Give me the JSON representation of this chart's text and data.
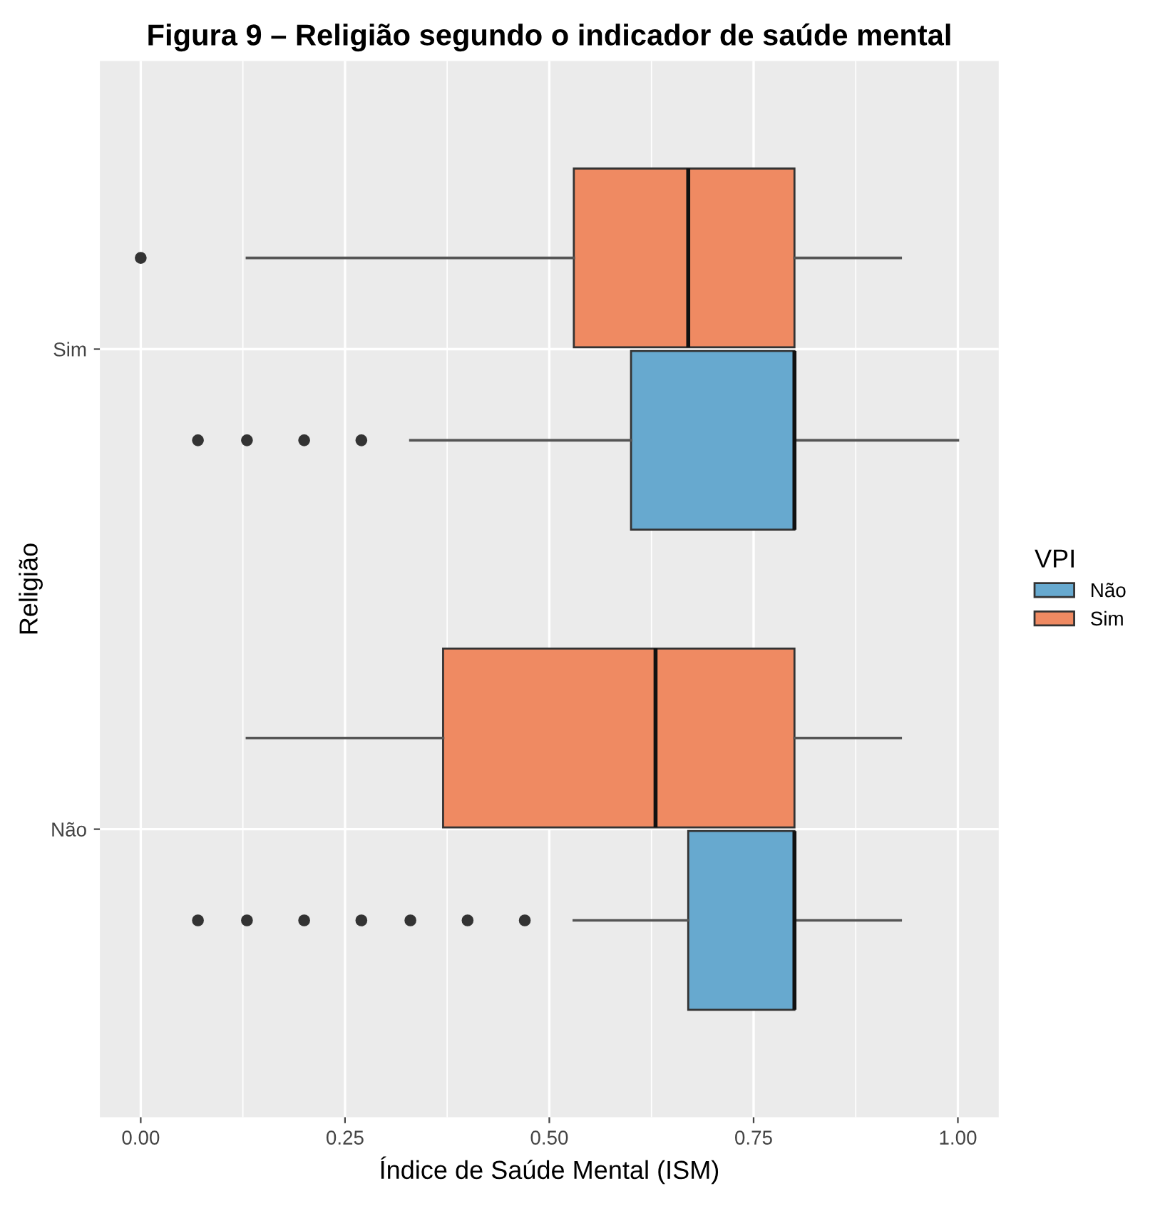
{
  "chart_data": {
    "type": "box",
    "title": "Figura 9 – Religião segundo o indicador de saúde mental",
    "xlabel": "Índice de Saúde Mental (ISM)",
    "ylabel": "Religião",
    "legend_title": "VPI",
    "orientation": "horizontal",
    "categories": [
      "Sim",
      "Não"
    ],
    "series": [
      {
        "name": "Não",
        "color": "#67a9cf",
        "boxes": [
          {
            "low": 0.33,
            "q1": 0.6,
            "median": 0.8,
            "q3": 0.8,
            "high": 1.0,
            "outliers": [
              0.07,
              0.13,
              0.2,
              0.27
            ]
          },
          {
            "low": 0.53,
            "q1": 0.67,
            "median": 0.8,
            "q3": 0.8,
            "high": 0.93,
            "outliers": [
              0.07,
              0.13,
              0.2,
              0.27,
              0.33,
              0.4,
              0.47
            ]
          }
        ]
      },
      {
        "name": "Sim",
        "color": "#ef8a62",
        "boxes": [
          {
            "low": 0.13,
            "q1": 0.53,
            "median": 0.67,
            "q3": 0.8,
            "high": 0.93,
            "outliers": [
              0.0
            ]
          },
          {
            "low": 0.13,
            "q1": 0.37,
            "median": 0.63,
            "q3": 0.8,
            "high": 0.93
          }
        ]
      }
    ],
    "xlim": [
      -0.05,
      1.05
    ],
    "xticks": [
      {
        "value": 0,
        "label": "0.00"
      },
      {
        "value": 0.25,
        "label": "0.25"
      },
      {
        "value": 0.5,
        "label": "0.50"
      },
      {
        "value": 0.75,
        "label": "0.75"
      },
      {
        "value": 1,
        "label": "1.00"
      }
    ],
    "grid": true,
    "legend": "right",
    "marker": "circle"
  }
}
